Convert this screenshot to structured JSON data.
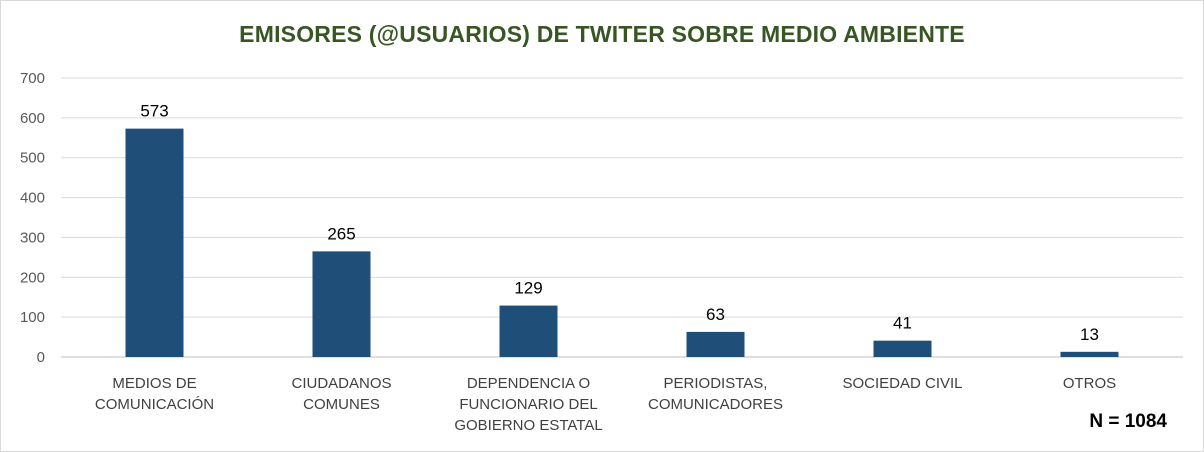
{
  "chart_data": {
    "type": "bar",
    "title": "EMISORES (@USUARIOS) DE TWITER SOBRE MEDIO AMBIENTE",
    "categories": [
      [
        "MEDIOS DE",
        "COMUNICACIÓN"
      ],
      [
        "CIUDADANOS",
        "COMUNES"
      ],
      [
        "DEPENDENCIA O",
        "FUNCIONARIO DEL",
        "GOBIERNO ESTATAL"
      ],
      [
        "PERIODISTAS,",
        "COMUNICADORES"
      ],
      [
        "SOCIEDAD CIVIL"
      ],
      [
        "OTROS"
      ]
    ],
    "values": [
      573,
      265,
      129,
      63,
      41,
      13
    ],
    "data_labels": [
      "573",
      "265",
      "129",
      "63",
      "41",
      "13"
    ],
    "ylim": [
      0,
      700
    ],
    "yticks": [
      "0",
      "100",
      "200",
      "300",
      "400",
      "500",
      "600",
      "700"
    ],
    "grid": true,
    "legend": "none",
    "xlabel": "",
    "ylabel": "",
    "bar_color": "#1f4e79",
    "title_color": "#375623",
    "annotation": "N = 1084"
  }
}
